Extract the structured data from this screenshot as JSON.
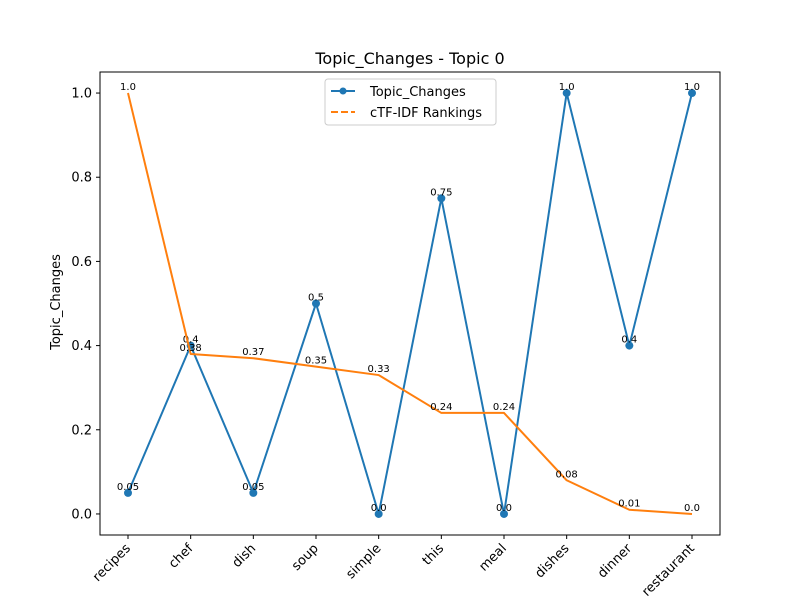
{
  "chart_data": {
    "type": "line",
    "title": "Topic_Changes - Topic 0",
    "xlabel": "",
    "ylabel": "Topic_Changes",
    "categories": [
      "recipes",
      "chef",
      "dish",
      "soup",
      "simple",
      "this",
      "meal",
      "dishes",
      "dinner",
      "restaurant"
    ],
    "ylim": [
      -0.05,
      1.05
    ],
    "yticks": [
      0.0,
      0.2,
      0.4,
      0.6,
      0.8,
      1.0
    ],
    "ytick_labels": [
      "0.0",
      "0.2",
      "0.4",
      "0.6",
      "0.8",
      "1.0"
    ],
    "grid": false,
    "legend_position": "upper center",
    "series": [
      {
        "name": "Topic_Changes",
        "color": "#1f77b4",
        "marker": "circle",
        "values": [
          0.05,
          0.4,
          0.05,
          0.5,
          0.0,
          0.75,
          0.0,
          1.0,
          0.4,
          1.0
        ],
        "labels": [
          "0.05",
          "0.4",
          "0.05",
          "0.5",
          "0.0",
          "0.75",
          "0.0",
          "1.0",
          "0.4",
          "1.0"
        ]
      },
      {
        "name": "cTF-IDF Rankings",
        "color": "#ff7f0e",
        "marker": "none",
        "values": [
          1.0,
          0.38,
          0.37,
          0.35,
          0.33,
          0.24,
          0.24,
          0.08,
          0.01,
          0.0
        ],
        "labels": [
          "1.0",
          "0.38",
          "0.37",
          "0.35",
          "0.33",
          "0.24",
          "0.24",
          "0.08",
          "0.01",
          "0.0"
        ]
      }
    ]
  }
}
